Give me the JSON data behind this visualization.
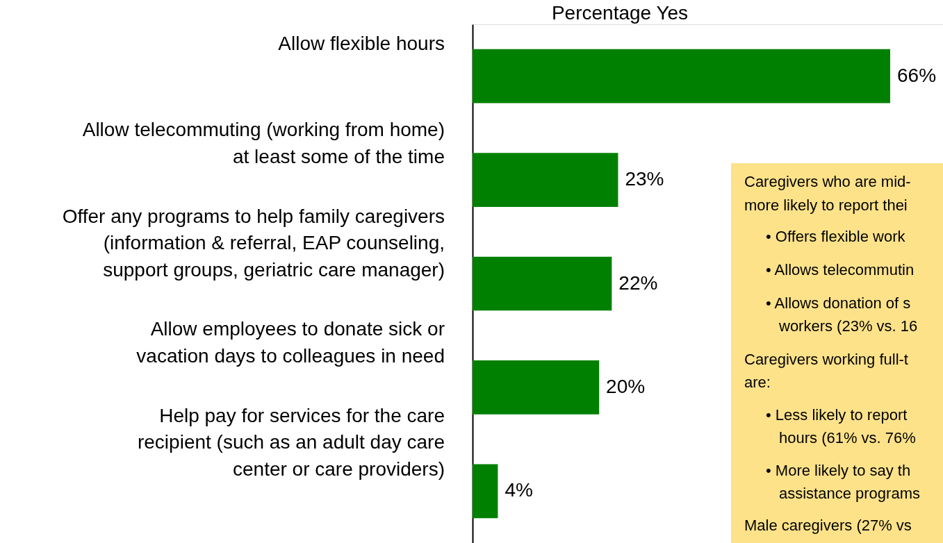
{
  "chart_data": {
    "type": "bar",
    "orientation": "horizontal",
    "title": "Percentage Yes",
    "categories": [
      "Allow flexible hours",
      "Allow telecommuting (working from home)\nat least some of the time",
      "Offer any programs to help family caregivers\n(information & referral, EAP counseling,\nsupport groups, geriatric care manager)",
      "Allow employees to donate sick or\nvacation days to colleagues in need",
      "Help pay for services for the care\nrecipient (such as an adult day care\ncenter or care providers)"
    ],
    "values": [
      66,
      23,
      22,
      20,
      4
    ],
    "value_labels": [
      "66%",
      "23%",
      "22%",
      "20%",
      "4%"
    ],
    "color": "#008000",
    "tick_labels": "y",
    "annotations": [
      "Caregivers who are mid-",
      "more likely to report thei",
      "• Offers flexible work",
      "• Allows telecommutin",
      "• Allows donation of s",
      "workers (23% vs. 16",
      "Caregivers working full-t",
      "are:",
      "• Less likely to report",
      "hours (61% vs. 76%",
      "• More likely to say th",
      "assistance programs",
      "Male caregivers (27% vs"
    ]
  }
}
